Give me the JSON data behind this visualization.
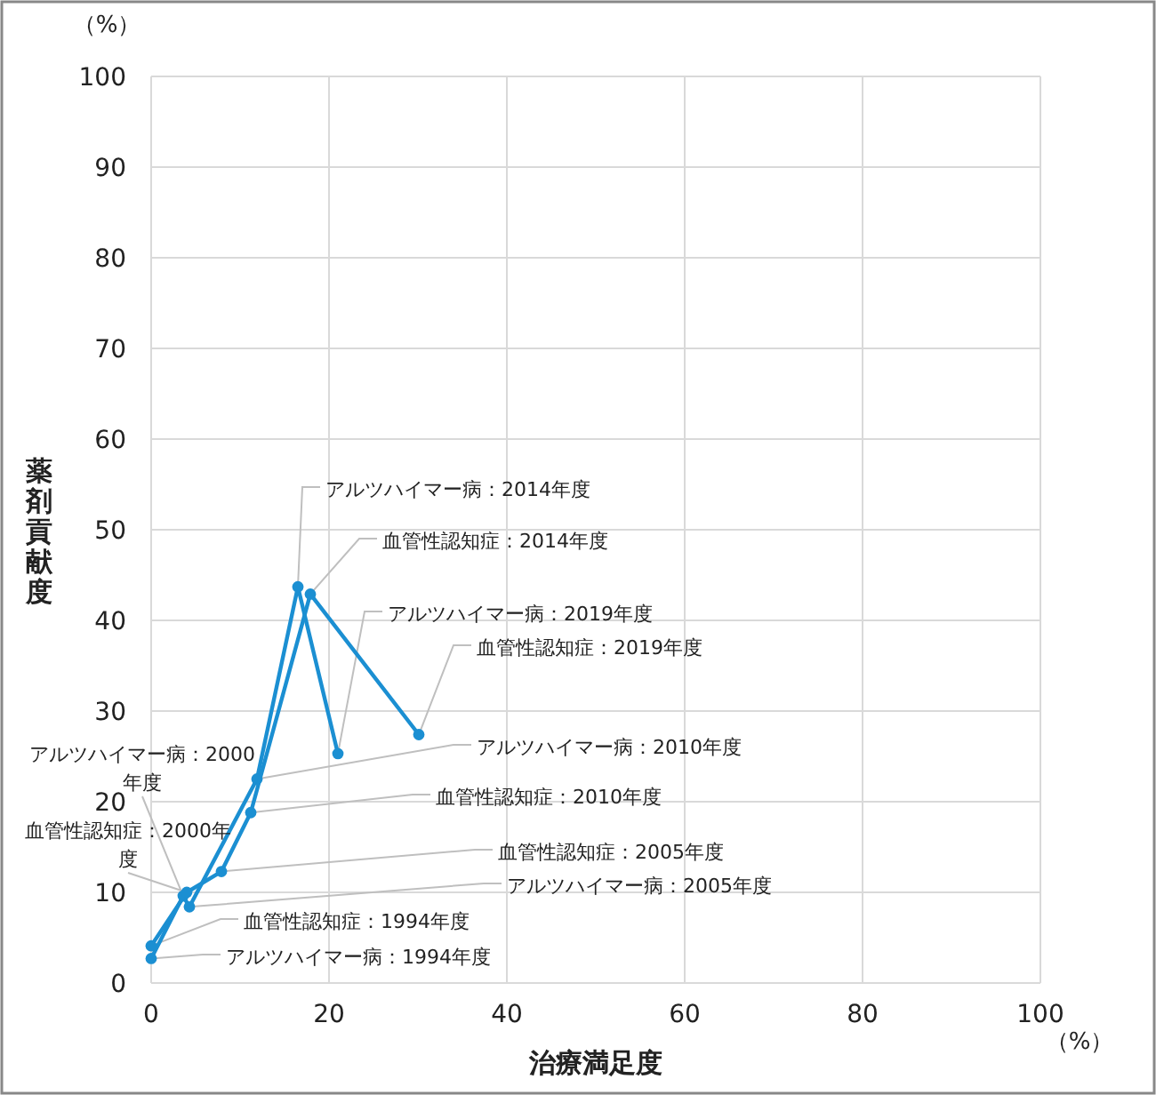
{
  "chart_data": {
    "type": "line",
    "xlabel": "治療満足度",
    "ylabel": "薬剤貢献度",
    "xlim": [
      0,
      100
    ],
    "ylim": [
      0,
      100
    ],
    "xticks": [
      0,
      20,
      40,
      60,
      80,
      100
    ],
    "yticks": [
      0,
      10,
      20,
      30,
      40,
      50,
      60,
      70,
      80,
      90,
      100
    ],
    "grid": true,
    "marker": "circle",
    "line_style": "solid",
    "series": [
      {
        "color": "#1b8fd2",
        "x": [
          0,
          3.6,
          4.3,
          11.9,
          16.5,
          21
        ],
        "values": [
          2.7,
          9.6,
          8.4,
          22.5,
          43.7,
          25.3
        ]
      },
      {
        "color": "#1b8fd2",
        "x": [
          0,
          4,
          7.9,
          11.2,
          17.9,
          30.1
        ],
        "values": [
          4.1,
          10,
          12.3,
          18.8,
          42.9,
          27.4
        ]
      }
    ],
    "annotations": [
      "（%）",
      "（%）",
      {
        "text": "アルツハイマー病：2014年度",
        "x": 16.5,
        "y": 43.7
      },
      {
        "text": "血管性認知症：2014年度",
        "x": 17.9,
        "y": 42.9
      },
      {
        "text": "アルツハイマー病：2019年度",
        "x": 21,
        "y": 25.3
      },
      {
        "text": "血管性認知症：2019年度",
        "x": 30.1,
        "y": 27.4
      },
      {
        "text": "アルツハイマー病：2010年度",
        "x": 11.9,
        "y": 22.5
      },
      {
        "text": "血管性認知症：2010年度",
        "x": 11.2,
        "y": 18.8
      },
      {
        "text": "血管性認知症：2005年度",
        "x": 7.9,
        "y": 12.3
      },
      {
        "text": "アルツハイマー病：2005年度",
        "x": 4.3,
        "y": 8.4
      },
      {
        "text": "血管性認知症：1994年度",
        "x": 0,
        "y": 4.1
      },
      {
        "text": "アルツハイマー病：1994年度",
        "x": 0,
        "y": 2.7
      },
      {
        "text": "アルツハイマー病：2000年度",
        "x": 3.6,
        "y": 9.6
      },
      {
        "text": "血管性認知症：2000年度",
        "x": 4,
        "y": 10
      }
    ]
  }
}
